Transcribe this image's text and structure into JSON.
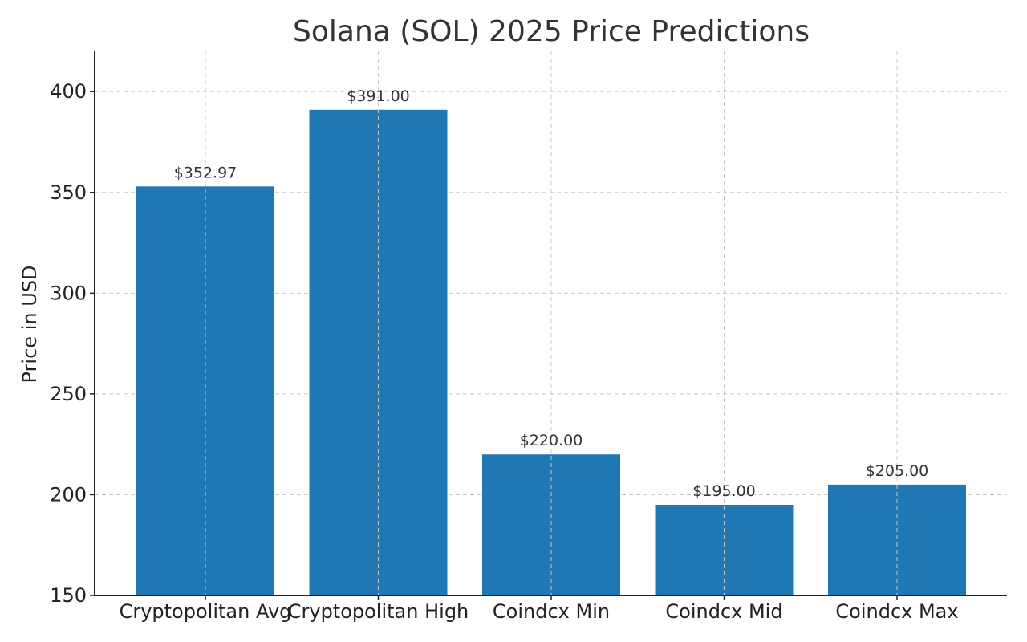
{
  "chart_data": {
    "type": "bar",
    "title": "Solana (SOL) 2025 Price Predictions",
    "xlabel": "",
    "ylabel": "Price in USD",
    "categories": [
      "Cryptopolitan Avg",
      "Cryptopolitan High",
      "Coindcx Min",
      "Coindcx Mid",
      "Coindcx Max"
    ],
    "values": [
      352.97,
      391.0,
      220.0,
      195.0,
      205.0
    ],
    "value_labels": [
      "$352.97",
      "$391.00",
      "$220.00",
      "$195.00",
      "$205.00"
    ],
    "ylim": [
      150,
      420
    ],
    "yticks": [
      150,
      200,
      250,
      300,
      350,
      400
    ],
    "grid": true,
    "bar_color": "#1f77b4"
  }
}
